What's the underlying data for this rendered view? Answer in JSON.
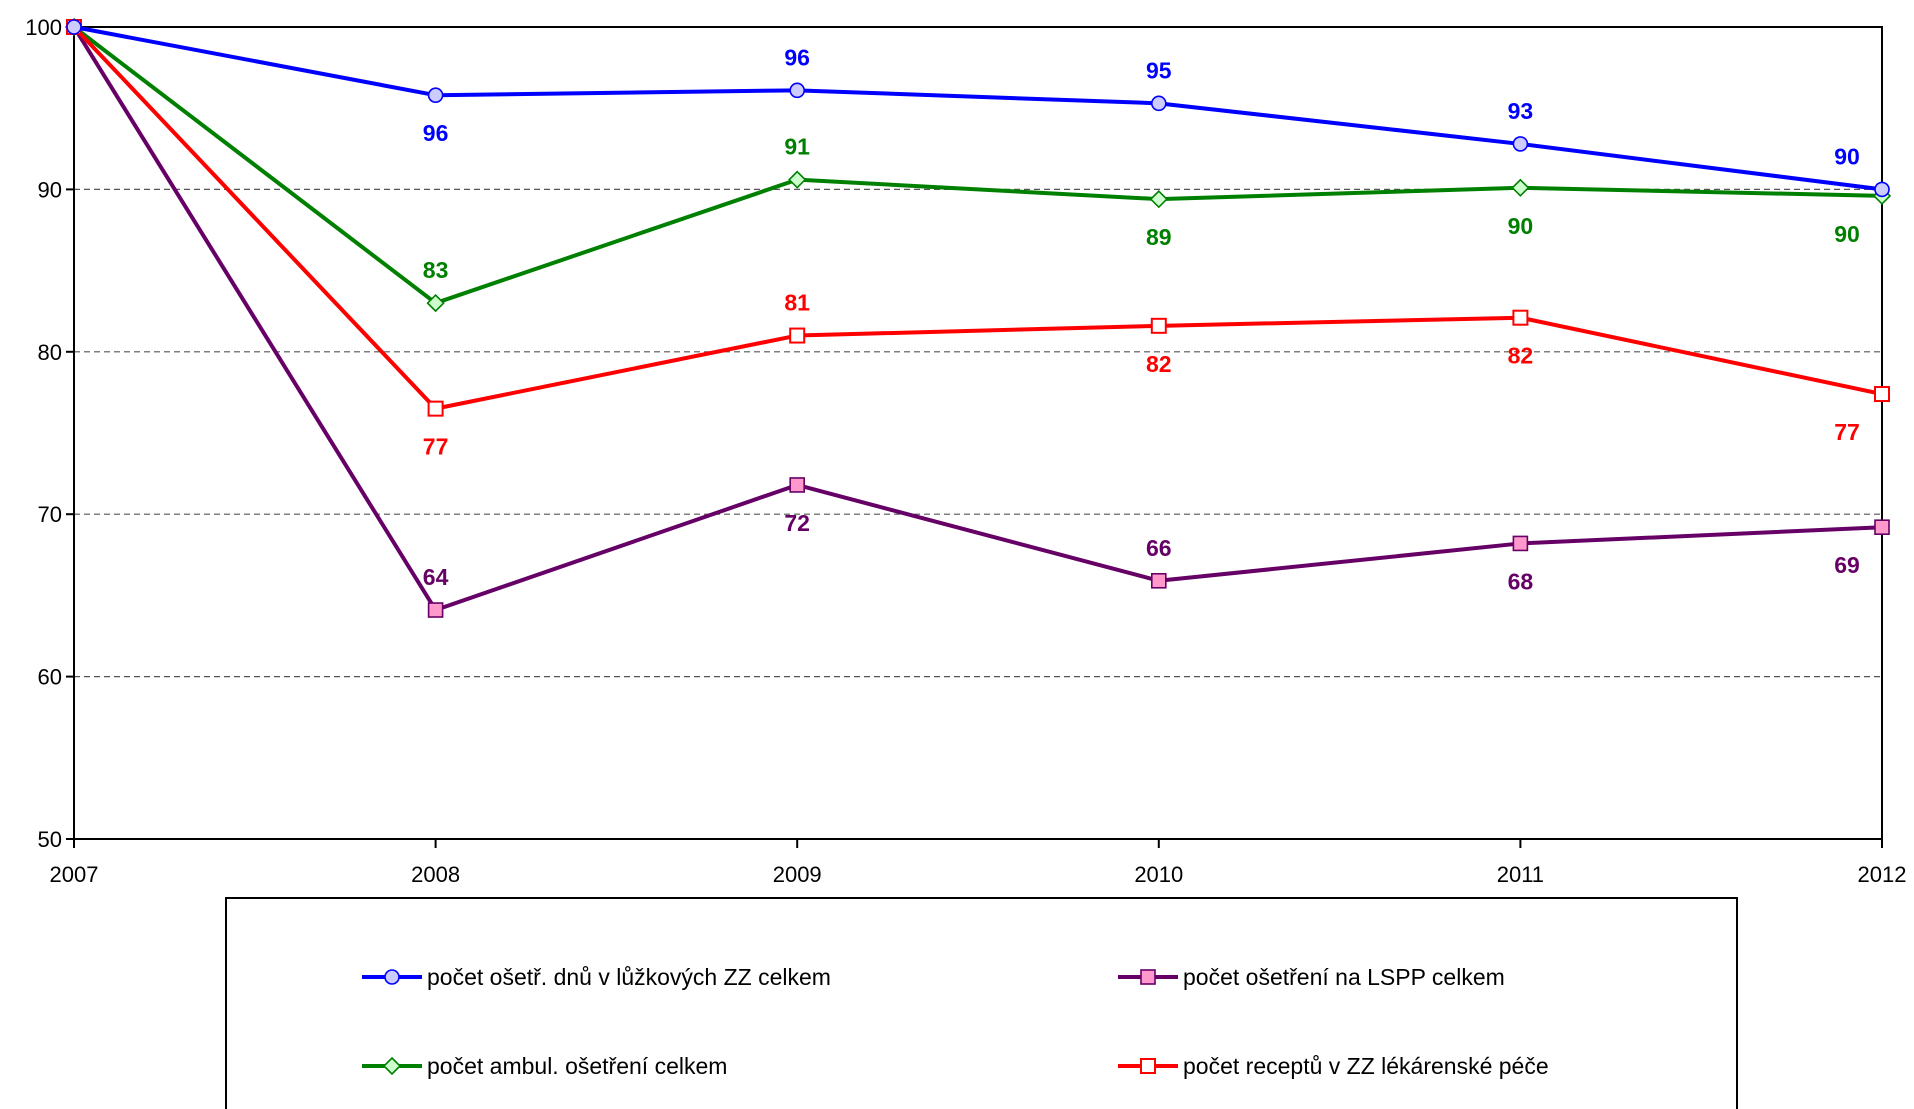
{
  "chart_data": {
    "type": "line",
    "x": [
      "2007",
      "2008",
      "2009",
      "2010",
      "2011",
      "2012"
    ],
    "ylim": [
      50,
      100
    ],
    "yticks": [
      50,
      60,
      70,
      80,
      90,
      100
    ],
    "grid": "horizontal-dashed",
    "legend_position": "bottom",
    "series": [
      {
        "name": "počet ošetř. dnů v lůžkových ZZ celkem",
        "color": "#0000ff",
        "marker": "circle",
        "marker_fill": "#ccccff",
        "values": [
          100,
          95.8,
          96.1,
          95.3,
          92.8,
          90.0
        ],
        "labels": [
          "",
          "96",
          "96",
          "95",
          "93",
          "90"
        ],
        "label_pos": [
          "",
          "below",
          "above",
          "above",
          "above",
          "above"
        ]
      },
      {
        "name": "počet ošetření na LSPP celkem",
        "color": "#660066",
        "marker": "square",
        "marker_fill": "#ff99cc",
        "values": [
          100,
          64.1,
          71.8,
          65.9,
          68.2,
          69.2
        ],
        "labels": [
          "",
          "64",
          "72",
          "66",
          "68",
          "69"
        ],
        "label_pos": [
          "",
          "above",
          "below",
          "above",
          "below",
          "below"
        ]
      },
      {
        "name": "počet ambul. ošetření celkem",
        "color": "#008000",
        "marker": "diamond",
        "marker_fill": "#ccffcc",
        "values": [
          100,
          83.0,
          90.6,
          89.4,
          90.1,
          89.6
        ],
        "labels": [
          "",
          "83",
          "91",
          "89",
          "90",
          "90"
        ],
        "label_pos": [
          "",
          "above",
          "above",
          "below",
          "below",
          "below"
        ]
      },
      {
        "name": "počet receptů v ZZ lékárenské péče",
        "color": "#ff0000",
        "marker": "square-open",
        "marker_fill": "#ffffff",
        "values": [
          100,
          76.5,
          81.0,
          81.6,
          82.1,
          77.4
        ],
        "labels": [
          "",
          "77",
          "81",
          "82",
          "82",
          "77"
        ],
        "label_pos": [
          "",
          "below",
          "above",
          "below",
          "below",
          "below"
        ]
      }
    ],
    "legend_order": [
      0,
      1,
      2,
      3
    ]
  }
}
